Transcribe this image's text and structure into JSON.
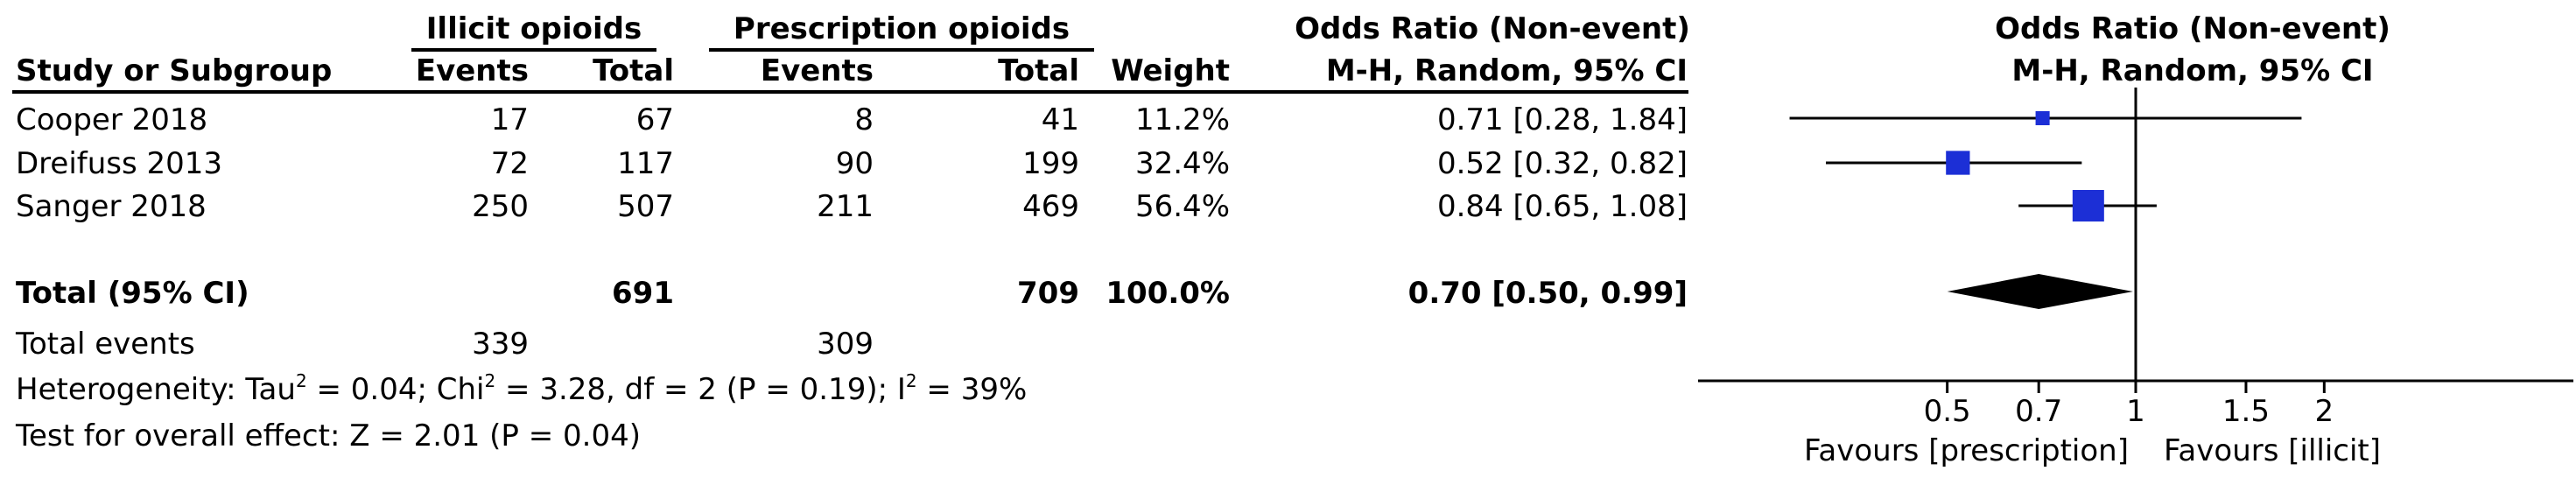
{
  "header": {
    "group1": "Illicit opioids",
    "group2": "Prescription opioids",
    "or_title": "Odds Ratio (Non-event)",
    "or_method": "M-H, Random, 95% CI",
    "plot_title": "Odds Ratio (Non-event)",
    "plot_method": "M-H, Random, 95% CI",
    "study_col": "Study or Subgroup",
    "events1": "Events",
    "total1": "Total",
    "events2": "Events",
    "total2": "Total",
    "weight": "Weight"
  },
  "studies": [
    {
      "name": "Cooper 2018",
      "events1": "17",
      "total1": "67",
      "events2": "8",
      "total2": "41",
      "weight": "11.2%",
      "ci": "0.71 [0.28, 1.84]"
    },
    {
      "name": "Dreifuss 2013",
      "events1": "72",
      "total1": "117",
      "events2": "90",
      "total2": "199",
      "weight": "32.4%",
      "ci": "0.52 [0.32, 0.82]"
    },
    {
      "name": "Sanger 2018",
      "events1": "250",
      "total1": "507",
      "events2": "211",
      "total2": "469",
      "weight": "56.4%",
      "ci": "0.84 [0.65, 1.08]"
    }
  ],
  "total": {
    "label": "Total (95% CI)",
    "total1": "691",
    "total2": "709",
    "weight": "100.0%",
    "ci": "0.70 [0.50, 0.99]"
  },
  "events": {
    "label": "Total events",
    "events1": "339",
    "events2": "309"
  },
  "heterogeneity": {
    "p1": "Heterogeneity: Tau",
    "p2": " = 0.04; Chi",
    "p3": " = 3.28, df = 2 (P = 0.19); I",
    "p4": " = 39%",
    "sup": "2"
  },
  "overall_effect": "Test for overall effect: Z = 2.01 (P = 0.04)",
  "axis": {
    "favours_left": "Favours [prescription]",
    "favours_right": "Favours [illicit]"
  },
  "colors": {
    "marker": "#1c2fd6",
    "line": "#000000"
  },
  "chart_data": {
    "type": "forest",
    "x_scale": "log",
    "xlim": [
      0.2,
      5
    ],
    "ticks": [
      0.5,
      0.7,
      1,
      1.5,
      2
    ],
    "tick_labels": [
      "0.5",
      "0.7",
      "1",
      "1.5",
      "2"
    ],
    "studies": [
      {
        "name": "Cooper 2018",
        "or": 0.71,
        "lo": 0.28,
        "hi": 1.84,
        "weight": 11.2
      },
      {
        "name": "Dreifuss 2013",
        "or": 0.52,
        "lo": 0.32,
        "hi": 0.82,
        "weight": 32.4
      },
      {
        "name": "Sanger 2018",
        "or": 0.84,
        "lo": 0.65,
        "hi": 1.08,
        "weight": 56.4
      }
    ],
    "pooled": {
      "or": 0.7,
      "lo": 0.5,
      "hi": 0.99
    }
  }
}
